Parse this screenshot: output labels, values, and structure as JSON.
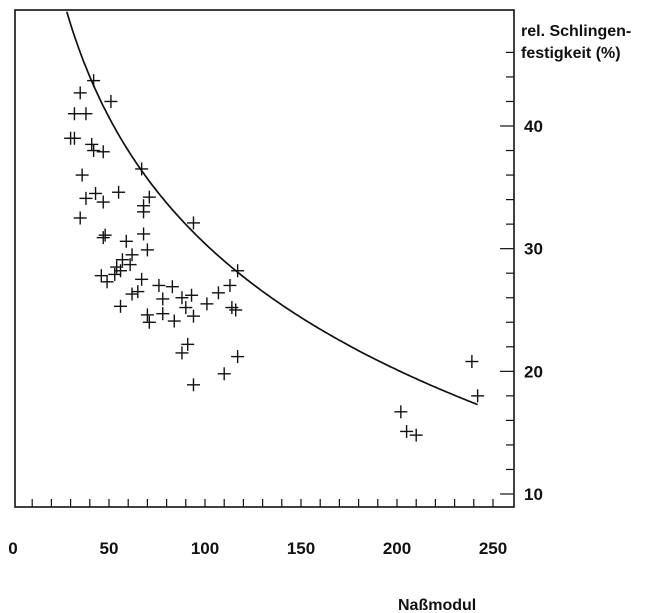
{
  "chart_data": {
    "type": "scatter",
    "title": "",
    "xlabel": "Naßmodul",
    "ylabel_lines": [
      "rel. Schlingen-",
      "festigkeit (%)"
    ],
    "xlim": [
      0,
      250
    ],
    "ylim": [
      9,
      48
    ],
    "x_ticks": [
      0,
      50,
      100,
      150,
      200,
      250
    ],
    "y_ticks": [
      10,
      20,
      30,
      40
    ],
    "y_axis_position": "right",
    "grid": false,
    "series": [
      {
        "points": [
          [
            42,
            43.7
          ],
          [
            35,
            42.7
          ],
          [
            32,
            41.0
          ],
          [
            38,
            41.0
          ],
          [
            51,
            42.0
          ],
          [
            30,
            39.0
          ],
          [
            32,
            39.0
          ],
          [
            41,
            38.5
          ],
          [
            42,
            38.0
          ],
          [
            47,
            37.9
          ],
          [
            36,
            36.0
          ],
          [
            38,
            34.1
          ],
          [
            43,
            34.5
          ],
          [
            47,
            33.8
          ],
          [
            55,
            34.6
          ],
          [
            67,
            36.5
          ],
          [
            68,
            33.0
          ],
          [
            68,
            33.5
          ],
          [
            71,
            34.2
          ],
          [
            94,
            32.1
          ],
          [
            35,
            32.5
          ],
          [
            47,
            30.9
          ],
          [
            48,
            31.1
          ],
          [
            59,
            30.6
          ],
          [
            68,
            31.2
          ],
          [
            57,
            29.1
          ],
          [
            62,
            29.5
          ],
          [
            70,
            29.9
          ],
          [
            46,
            27.8
          ],
          [
            49,
            27.3
          ],
          [
            56,
            28.2
          ],
          [
            53,
            27.9
          ],
          [
            54,
            28.5
          ],
          [
            61,
            28.7
          ],
          [
            62,
            26.3
          ],
          [
            67,
            27.5
          ],
          [
            56,
            25.3
          ],
          [
            65,
            26.5
          ],
          [
            70,
            24.6
          ],
          [
            71,
            24.0
          ],
          [
            76,
            27.0
          ],
          [
            78,
            25.9
          ],
          [
            78,
            24.7
          ],
          [
            83,
            26.9
          ],
          [
            84,
            24.1
          ],
          [
            88,
            26.0
          ],
          [
            90,
            25.2
          ],
          [
            93,
            26.2
          ],
          [
            94,
            24.5
          ],
          [
            101,
            25.5
          ],
          [
            107,
            26.4
          ],
          [
            113,
            27.0
          ],
          [
            114,
            25.2
          ],
          [
            116,
            25.0
          ],
          [
            117,
            28.2
          ],
          [
            88,
            21.5
          ],
          [
            91,
            22.2
          ],
          [
            94,
            18.9
          ],
          [
            110,
            19.8
          ],
          [
            117,
            21.2
          ],
          [
            202,
            16.7
          ],
          [
            205,
            15.1
          ],
          [
            210,
            14.8
          ],
          [
            239,
            20.8
          ],
          [
            242,
            18.0
          ]
        ]
      }
    ],
    "fit_curve": {
      "formula": "y = a + b*ln(x)",
      "a": 98.8,
      "b": -14.85,
      "x_range": [
        28,
        242
      ]
    }
  }
}
